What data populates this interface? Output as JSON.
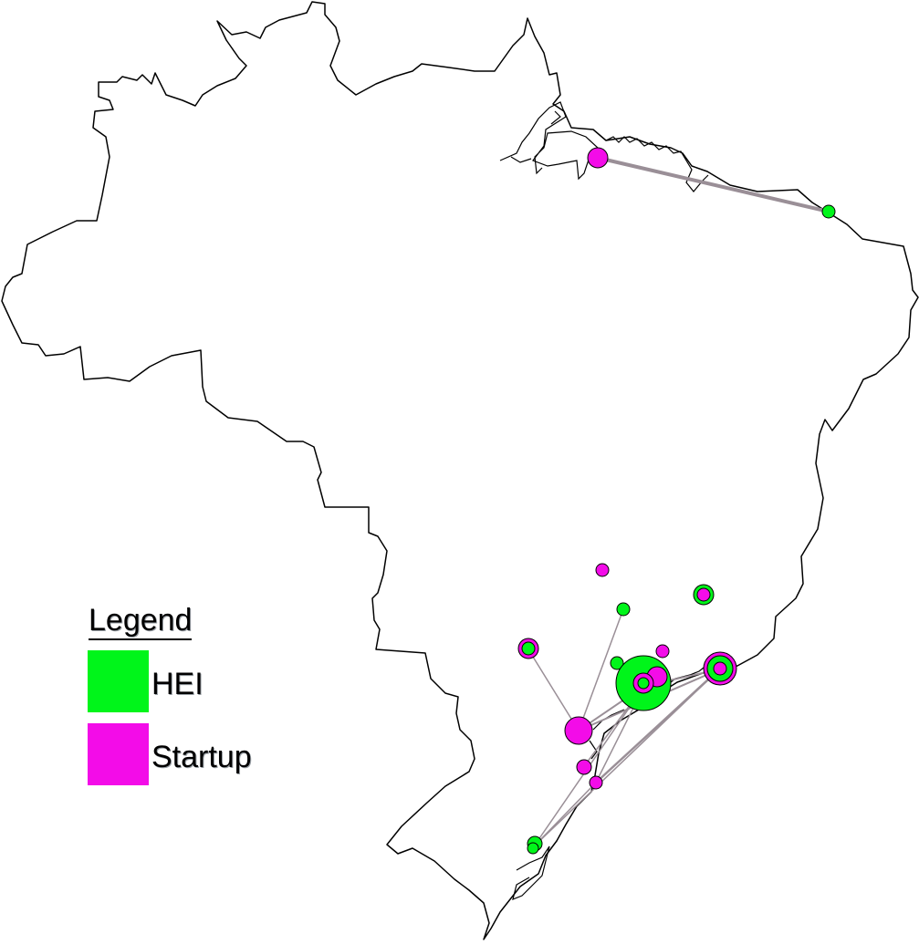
{
  "legend": {
    "title": "Legend",
    "items": [
      {
        "label": "HEI",
        "color": "#00f51a"
      },
      {
        "label": "Startup",
        "color": "#f30ce8"
      }
    ]
  },
  "colors": {
    "hei": "#00f51a",
    "startup": "#f30ce8",
    "link": "#9a8f97",
    "outline": "#000000"
  }
}
